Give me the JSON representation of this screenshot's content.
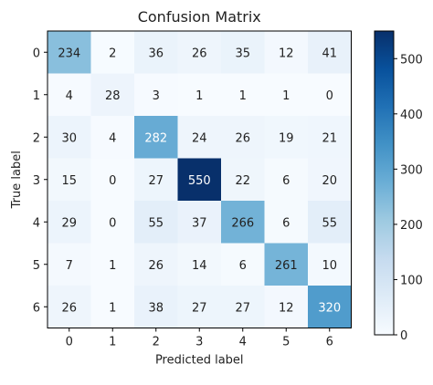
{
  "chart_data": {
    "type": "heatmap",
    "title": "Confusion Matrix",
    "xlabel": "Predicted label",
    "ylabel": "True label",
    "x_ticks": [
      "0",
      "1",
      "2",
      "3",
      "4",
      "5",
      "6"
    ],
    "y_ticks": [
      "0",
      "1",
      "2",
      "3",
      "4",
      "5",
      "6"
    ],
    "matrix": [
      [
        234,
        2,
        36,
        26,
        35,
        12,
        41
      ],
      [
        4,
        28,
        3,
        1,
        1,
        1,
        0
      ],
      [
        30,
        4,
        282,
        24,
        26,
        19,
        21
      ],
      [
        15,
        0,
        27,
        550,
        22,
        6,
        20
      ],
      [
        29,
        0,
        55,
        37,
        266,
        6,
        55
      ],
      [
        7,
        1,
        26,
        14,
        6,
        261,
        10
      ],
      [
        26,
        1,
        38,
        27,
        27,
        12,
        320
      ]
    ],
    "value_range": [
      0,
      550
    ],
    "colormap": "Blues",
    "colorbar": {
      "ticks": [
        0,
        100,
        200,
        300,
        400,
        500
      ],
      "tick_labels": [
        "0",
        "100",
        "200",
        "300",
        "400",
        "500"
      ]
    }
  }
}
